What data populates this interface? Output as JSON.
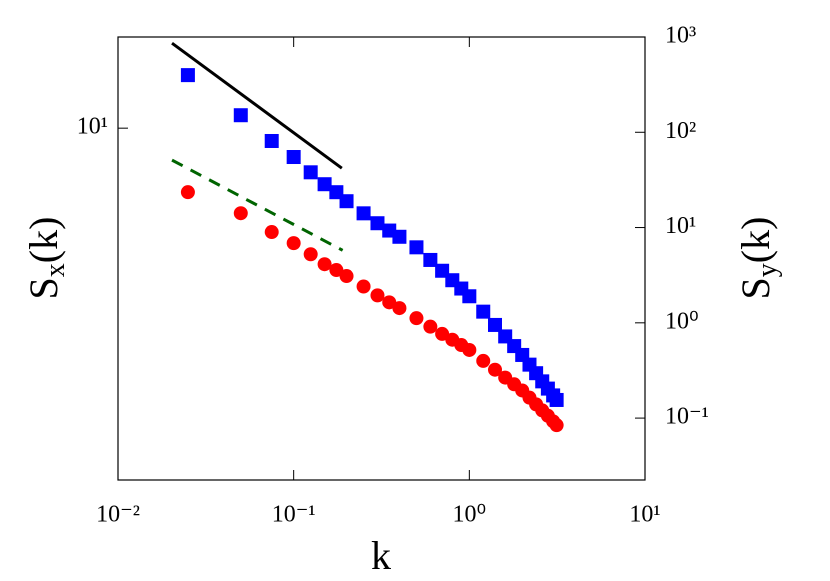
{
  "chart_data": {
    "type": "scatter",
    "xlabel": "k",
    "ylabel": [
      "S",
      "x",
      "(k)"
    ],
    "y2label": [
      "S",
      "y",
      "(k)"
    ],
    "xscale": "log",
    "yscale": "log",
    "y2scale": "log",
    "xlim": [
      0.01,
      10
    ],
    "xticks": [
      {
        "value": 0.01,
        "label": "10⁻²"
      },
      {
        "value": 0.1,
        "label": "10⁻¹"
      },
      {
        "value": 1,
        "label": "10⁰"
      },
      {
        "value": 10,
        "label": "10¹"
      }
    ],
    "ylim": [
      1.32,
      16.9
    ],
    "yticks": [
      {
        "value": 10,
        "label": "10¹"
      }
    ],
    "y2lim": [
      0.0224,
      1000
    ],
    "y2ticks": [
      {
        "value": 0.1,
        "label": "10⁻¹"
      },
      {
        "value": 1,
        "label": "10⁰"
      },
      {
        "value": 10,
        "label": "10¹"
      },
      {
        "value": 100,
        "label": "10²"
      },
      {
        "value": 1000,
        "label": "10³"
      }
    ],
    "series": [
      {
        "color": "#0000ff",
        "axis": "y2",
        "marker": "square",
        "x": [
          0.025,
          0.05,
          0.075,
          0.1,
          0.125,
          0.15,
          0.175,
          0.2,
          0.25,
          0.3,
          0.35,
          0.4,
          0.5,
          0.6,
          0.7,
          0.8,
          0.9,
          1,
          1.2,
          1.4,
          1.6,
          1.8,
          2,
          2.2,
          2.4,
          2.6,
          2.8,
          3,
          3.14
        ],
        "values": [
          398,
          151,
          81,
          55,
          38,
          28.5,
          23.5,
          18.9,
          14.1,
          11.1,
          9.3,
          8.0,
          6.2,
          4.57,
          3.52,
          2.8,
          2.29,
          1.9,
          1.31,
          0.95,
          0.72,
          0.57,
          0.46,
          0.364,
          0.296,
          0.243,
          0.204,
          0.173,
          0.155
        ]
      },
      {
        "color": "#ff0000",
        "axis": "y",
        "marker": "circle",
        "x": [
          0.025,
          0.05,
          0.075,
          0.1,
          0.125,
          0.15,
          0.175,
          0.2,
          0.25,
          0.3,
          0.35,
          0.4,
          0.5,
          0.6,
          0.7,
          0.8,
          0.9,
          1,
          1.2,
          1.4,
          1.6,
          1.8,
          2,
          2.2,
          2.4,
          2.6,
          2.8,
          3,
          3.14
        ],
        "values": [
          6.92,
          6.13,
          5.5,
          5.16,
          4.84,
          4.57,
          4.42,
          4.27,
          4.02,
          3.82,
          3.67,
          3.55,
          3.35,
          3.19,
          3.06,
          2.96,
          2.87,
          2.79,
          2.62,
          2.49,
          2.38,
          2.29,
          2.21,
          2.12,
          2.04,
          1.97,
          1.91,
          1.85,
          1.81
        ]
      },
      {
        "color": "#000000",
        "axis": "y2",
        "line": "solid",
        "x": [
          0.0203,
          0.188
        ],
        "values": [
          861,
          42
        ]
      },
      {
        "color": "#006400",
        "axis": "y",
        "line": "dashed",
        "x": [
          0.0203,
          0.19
        ],
        "values": [
          8.32,
          4.95
        ]
      }
    ]
  }
}
